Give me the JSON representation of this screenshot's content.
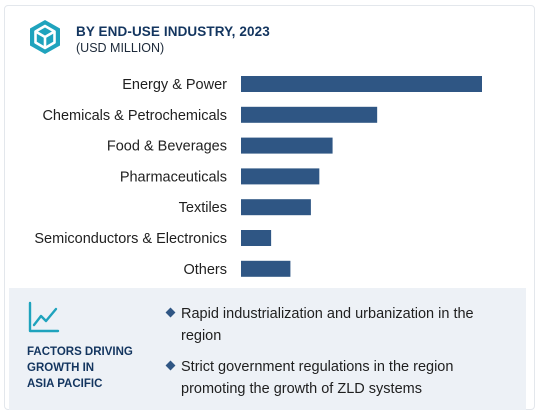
{
  "header": {
    "title": "BY END-USE INDUSTRY, 2023",
    "subtitle": "(USD MILLION)"
  },
  "colors": {
    "bar": "#2f5684",
    "accent": "#1fa3bd",
    "heading": "#13355f"
  },
  "chart_data": {
    "type": "bar",
    "orientation": "horizontal",
    "categories": [
      "Energy & Power",
      "Chemicals & Petrochemicals",
      "Food & Beverages",
      "Pharmaceuticals",
      "Textiles",
      "Semiconductors & Electronics",
      "Others"
    ],
    "values": [
      100,
      56.5,
      38,
      32.5,
      29,
      12.5,
      20.5
    ],
    "value_unit": "relative (no axis shown)",
    "title": "BY END-USE INDUSTRY, 2023",
    "subtitle": "(USD MILLION)",
    "xlabel": "",
    "ylabel": "",
    "xlim": [
      0,
      100
    ],
    "grid": false,
    "legend": "none"
  },
  "factors": {
    "title_lines": [
      "FACTORS DRIVING",
      "GROWTH IN",
      "ASIA PACIFIC"
    ],
    "bullets": [
      "Rapid industrialization and urbanization in the region",
      "Strict government regulations in the region promoting the growth of ZLD systems"
    ]
  }
}
